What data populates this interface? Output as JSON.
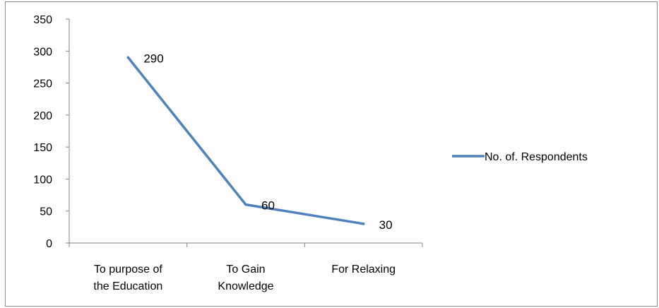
{
  "chart_data": {
    "type": "line",
    "categories": [
      [
        "To purpose of",
        "the Education"
      ],
      [
        "To Gain",
        "Knowledge"
      ],
      [
        "For Relaxing"
      ]
    ],
    "series": [
      {
        "name": "No. of. Respondents",
        "values": [
          290,
          60,
          30
        ],
        "color": "#4f81bd"
      }
    ],
    "data_labels": [
      "290",
      "60",
      "30"
    ],
    "yticks": [
      "0",
      "50",
      "100",
      "150",
      "200",
      "250",
      "300",
      "350"
    ],
    "ylim": [
      0,
      350
    ],
    "grid": false,
    "legend": "right"
  }
}
